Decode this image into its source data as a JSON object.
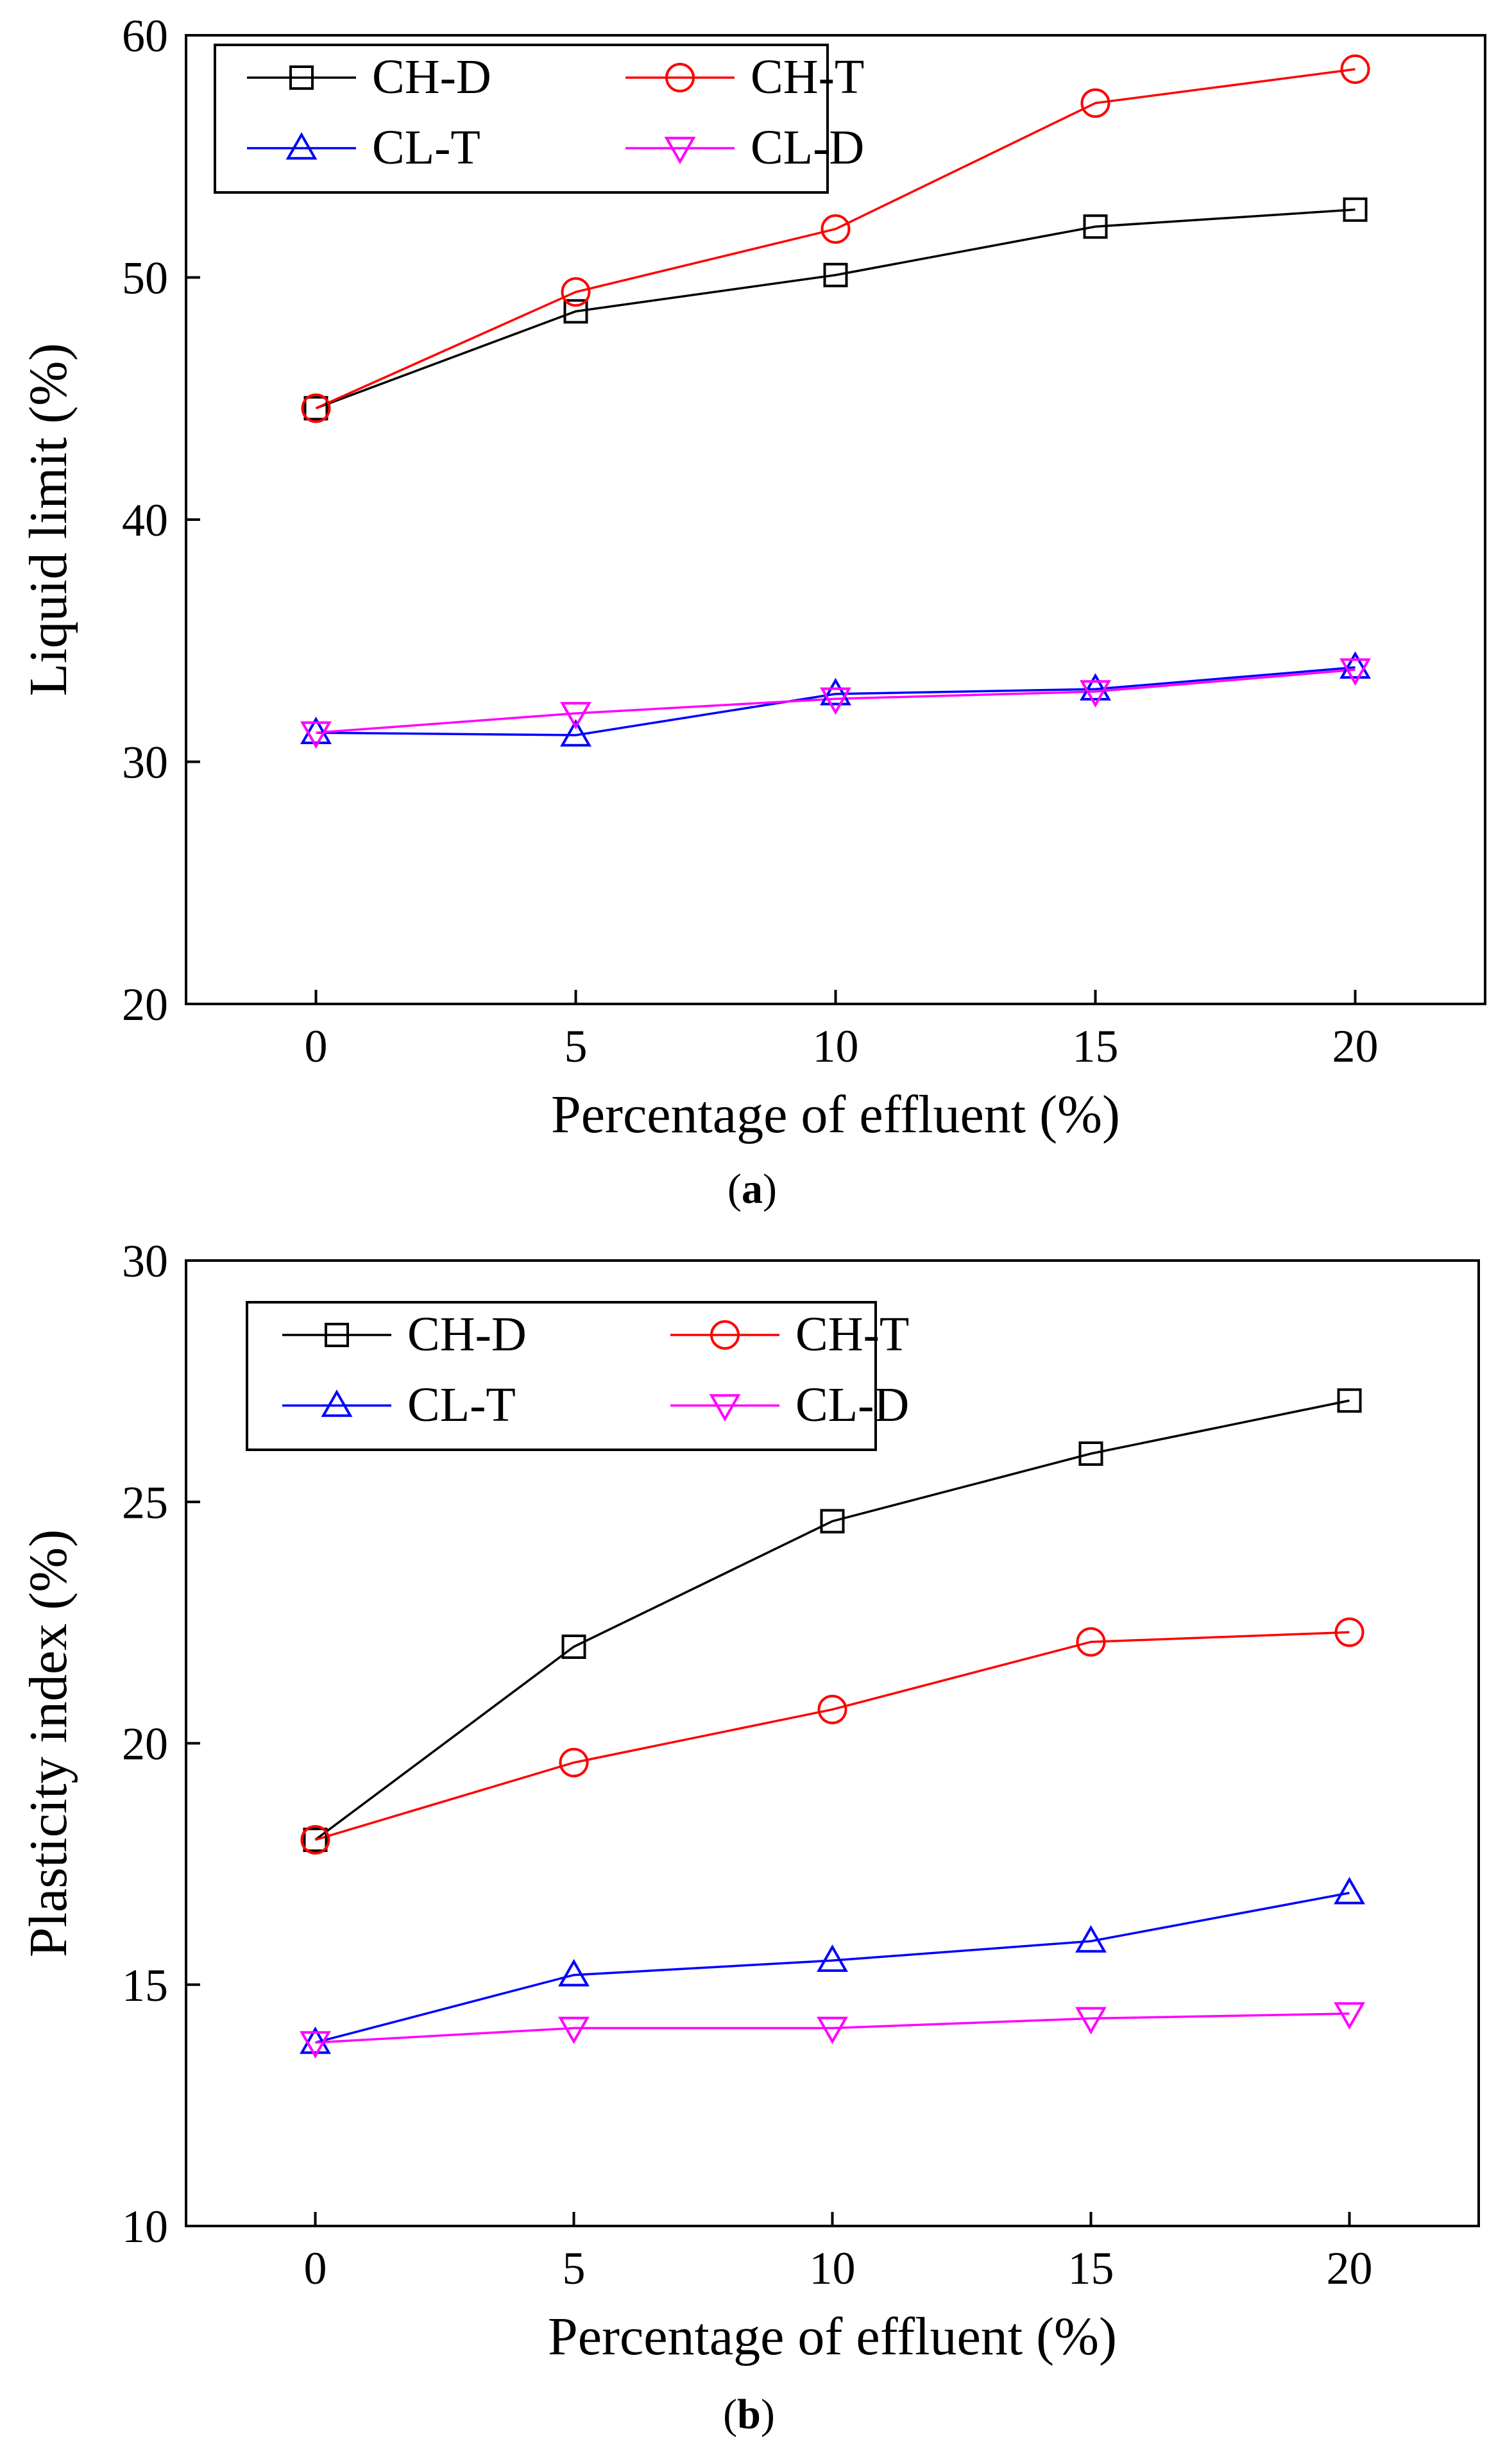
{
  "chart_data": [
    {
      "type": "line",
      "panel_label": "a",
      "title": "",
      "xlabel": "Percentage of effluent (%)",
      "ylabel": "Liquid limit (%)",
      "xlim": [
        -2.5,
        22.5
      ],
      "ylim": [
        20,
        60
      ],
      "x_ticks": [
        0,
        5,
        10,
        15,
        20
      ],
      "y_ticks": [
        20,
        30,
        40,
        50,
        60
      ],
      "grid": false,
      "legend_position": "top-left",
      "x": [
        0,
        5,
        10,
        15,
        20
      ],
      "series": [
        {
          "name": "CH-D",
          "color": "#000000",
          "marker": "square",
          "values": [
            44.6,
            48.6,
            50.1,
            52.1,
            52.8
          ]
        },
        {
          "name": "CH-T",
          "color": "#ff0000",
          "marker": "circle",
          "values": [
            44.6,
            49.4,
            52.0,
            57.2,
            58.6
          ]
        },
        {
          "name": "CL-T",
          "color": "#0000ff",
          "marker": "triangle-up",
          "values": [
            31.2,
            31.1,
            32.8,
            33.0,
            33.9
          ]
        },
        {
          "name": "CL-D",
          "color": "#ff00ff",
          "marker": "triangle-down",
          "values": [
            31.2,
            32.0,
            32.6,
            32.9,
            33.8
          ]
        }
      ]
    },
    {
      "type": "line",
      "panel_label": "b",
      "title": "",
      "xlabel": "Percentage of effluent (%)",
      "ylabel": "Plasticity index (%)",
      "xlim": [
        -2.5,
        22.5
      ],
      "ylim": [
        10,
        30
      ],
      "x_ticks": [
        0,
        5,
        10,
        15,
        20
      ],
      "y_ticks": [
        10,
        15,
        20,
        25,
        30
      ],
      "grid": false,
      "legend_position": "top-left",
      "x": [
        0,
        5,
        10,
        15,
        20
      ],
      "series": [
        {
          "name": "CH-D",
          "color": "#000000",
          "marker": "square",
          "values": [
            18.0,
            22.0,
            24.6,
            26.0,
            27.1
          ]
        },
        {
          "name": "CH-T",
          "color": "#ff0000",
          "marker": "circle",
          "values": [
            18.0,
            19.6,
            20.7,
            22.1,
            22.3
          ]
        },
        {
          "name": "CL-T",
          "color": "#0000ff",
          "marker": "triangle-up",
          "values": [
            13.8,
            15.2,
            15.5,
            15.9,
            16.9
          ]
        },
        {
          "name": "CL-D",
          "color": "#ff00ff",
          "marker": "triangle-down",
          "values": [
            13.8,
            14.1,
            14.1,
            14.3,
            14.4
          ]
        }
      ]
    }
  ]
}
